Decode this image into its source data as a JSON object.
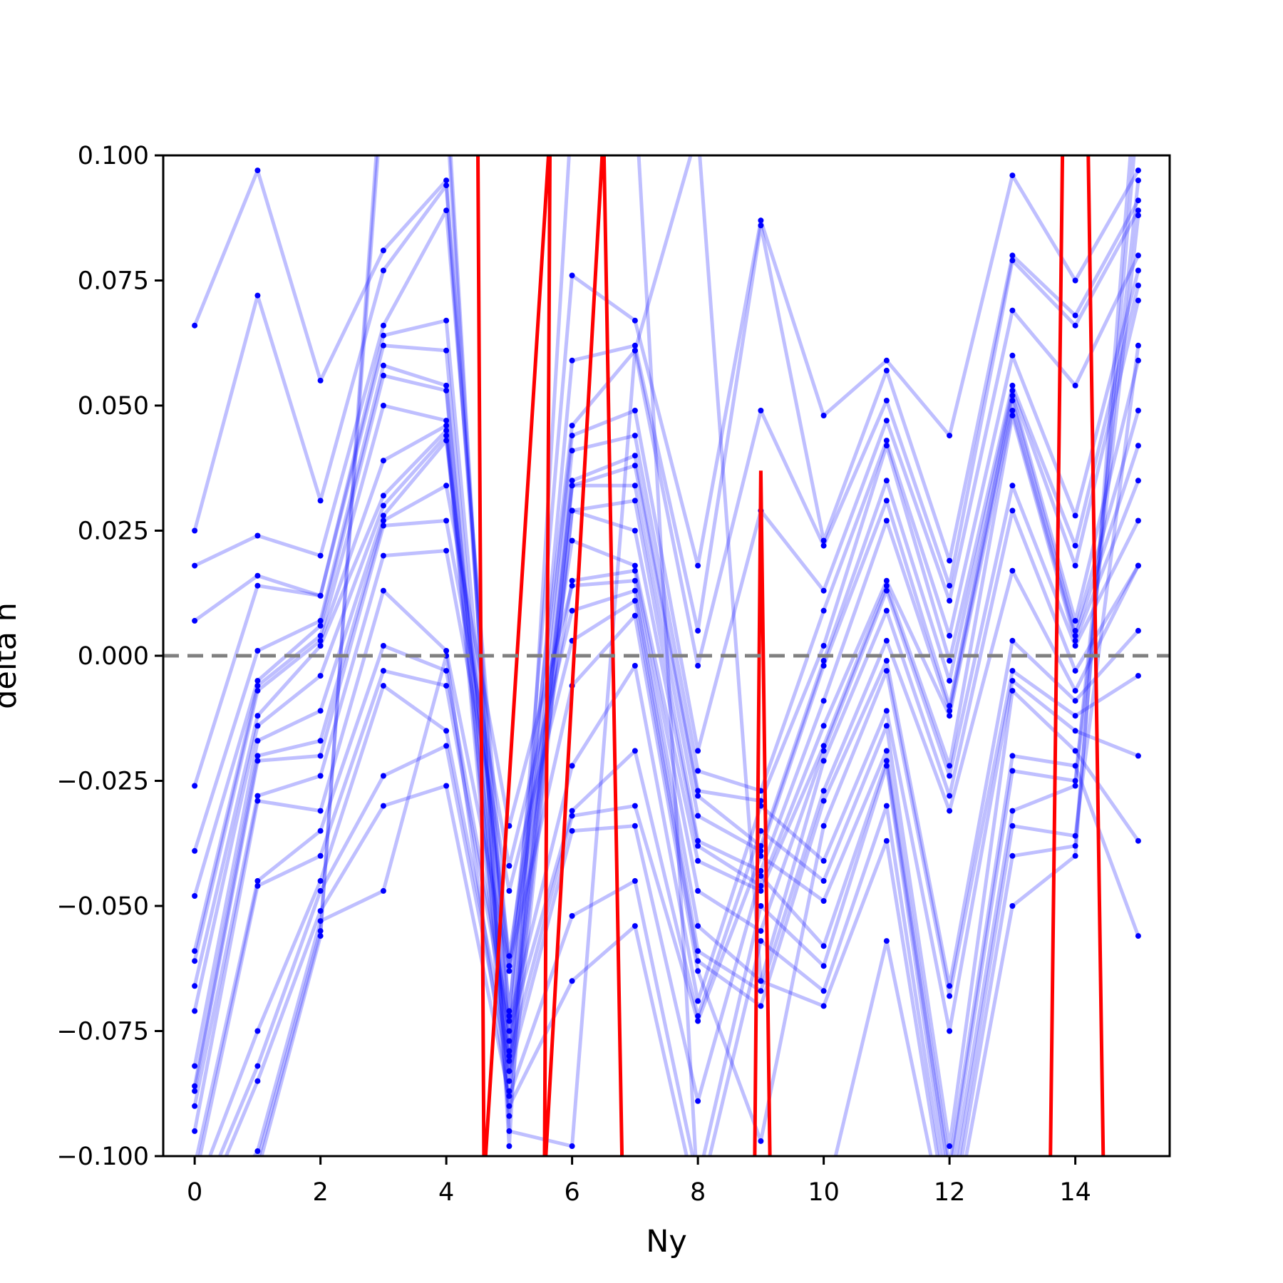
{
  "chart_data": {
    "type": "line",
    "xlabel": "Ny",
    "ylabel": "delta n",
    "xlim": [
      -0.5,
      15.5
    ],
    "ylim": [
      -0.1,
      0.1
    ],
    "x_ticks": [
      0,
      2,
      4,
      6,
      8,
      10,
      12,
      14
    ],
    "x_tick_labels": [
      "0",
      "2",
      "4",
      "6",
      "8",
      "10",
      "12",
      "14"
    ],
    "y_ticks": [
      -0.1,
      -0.075,
      -0.05,
      -0.025,
      0.0,
      0.025,
      0.05,
      0.075,
      0.1
    ],
    "y_tick_labels": [
      "−0.100",
      "−0.075",
      "−0.050",
      "−0.025",
      "0.000",
      "0.025",
      "0.050",
      "0.075",
      "0.100"
    ],
    "reference_line": {
      "y": 0.0,
      "style": "dashed",
      "color": "#808080"
    },
    "x": [
      0,
      1,
      2,
      3,
      4,
      5,
      6,
      7,
      8,
      9,
      10,
      11,
      12,
      13,
      14,
      15
    ],
    "series_color": "#0000ff",
    "series_opacity": 0.25,
    "series": [
      {
        "values": [
          0.066,
          0.097,
          0.055,
          0.081,
          0.095,
          -0.072,
          0.076,
          0.067,
          0.018,
          0.087,
          0.048,
          0.059,
          0.044,
          0.096,
          0.075,
          0.097
        ]
      },
      {
        "values": [
          0.025,
          0.072,
          0.031,
          0.077,
          0.094,
          -0.077,
          0.059,
          0.062,
          0.005,
          0.086,
          0.023,
          0.057,
          0.019,
          0.08,
          0.068,
          0.091
        ]
      },
      {
        "values": [
          0.018,
          0.024,
          0.02,
          0.066,
          0.089,
          -0.063,
          0.046,
          0.061,
          -0.002,
          0.049,
          0.022,
          0.051,
          0.014,
          0.079,
          0.066,
          0.089
        ]
      },
      {
        "values": [
          0.007,
          0.016,
          0.012,
          0.064,
          0.067,
          -0.071,
          0.044,
          0.049,
          -0.019,
          0.029,
          0.013,
          0.047,
          0.011,
          0.069,
          0.054,
          0.08
        ]
      },
      {
        "values": [
          -0.026,
          0.014,
          0.012,
          0.062,
          0.061,
          -0.079,
          0.041,
          0.044,
          -0.023,
          -0.027,
          0.009,
          0.043,
          0.004,
          0.06,
          0.028,
          0.077
        ]
      },
      {
        "values": [
          -0.039,
          0.001,
          0.007,
          0.058,
          0.054,
          -0.081,
          0.035,
          0.04,
          -0.027,
          -0.029,
          0.002,
          0.042,
          -0.001,
          0.054,
          0.022,
          0.074
        ]
      },
      {
        "values": [
          -0.048,
          -0.005,
          0.006,
          0.056,
          0.053,
          -0.083,
          0.034,
          0.038,
          -0.028,
          -0.038,
          -0.001,
          0.035,
          -0.005,
          0.053,
          0.018,
          0.071
        ]
      },
      {
        "values": [
          -0.059,
          -0.006,
          0.004,
          0.05,
          0.047,
          -0.085,
          0.034,
          0.034,
          -0.032,
          -0.039,
          -0.002,
          0.031,
          -0.01,
          0.052,
          0.007,
          0.059
        ]
      },
      {
        "values": [
          -0.061,
          -0.007,
          0.003,
          0.039,
          0.046,
          -0.087,
          0.029,
          0.031,
          -0.037,
          -0.043,
          -0.009,
          0.027,
          -0.011,
          0.051,
          0.005,
          0.049
        ]
      },
      {
        "values": [
          -0.066,
          -0.012,
          0.002,
          0.032,
          0.045,
          -0.092,
          0.029,
          0.025,
          -0.038,
          -0.046,
          -0.014,
          0.015,
          -0.012,
          0.049,
          0.004,
          0.042
        ]
      },
      {
        "values": [
          -0.071,
          -0.014,
          -0.004,
          0.03,
          0.044,
          -0.06,
          0.023,
          0.018,
          -0.041,
          -0.047,
          -0.018,
          0.014,
          -0.022,
          0.048,
          0.003,
          0.035
        ]
      },
      {
        "values": [
          -0.082,
          -0.017,
          -0.011,
          0.028,
          0.043,
          -0.062,
          0.015,
          0.017,
          -0.047,
          -0.055,
          -0.019,
          0.013,
          -0.024,
          0.034,
          0.002,
          0.027
        ]
      },
      {
        "values": [
          -0.086,
          -0.02,
          -0.017,
          0.027,
          0.034,
          -0.034,
          0.014,
          0.015,
          -0.054,
          -0.065,
          -0.021,
          0.009,
          -0.028,
          0.029,
          -0.003,
          0.018
        ]
      },
      {
        "values": [
          -0.087,
          -0.021,
          -0.02,
          0.026,
          0.027,
          -0.042,
          0.009,
          0.013,
          -0.059,
          -0.067,
          -0.027,
          0.003,
          -0.031,
          0.017,
          -0.007,
          0.018
        ]
      },
      {
        "values": [
          -0.09,
          -0.028,
          -0.024,
          0.02,
          0.021,
          -0.047,
          0.003,
          0.011,
          -0.061,
          -0.07,
          -0.029,
          -0.001,
          -0.066,
          0.003,
          -0.009,
          0.005
        ]
      },
      {
        "values": [
          -0.095,
          -0.029,
          -0.031,
          0.013,
          0.001,
          -0.062,
          -0.006,
          0.008,
          -0.063,
          -0.097,
          -0.034,
          -0.003,
          -0.068,
          -0.003,
          -0.012,
          -0.004
        ]
      },
      {
        "values": [
          -0.102,
          -0.045,
          -0.035,
          0.002,
          -0.003,
          -0.073,
          -0.022,
          -0.002,
          -0.069,
          -0.03,
          -0.041,
          -0.011,
          -0.075,
          -0.005,
          -0.015,
          -0.02
        ]
      },
      {
        "values": [
          -0.105,
          -0.046,
          -0.04,
          -0.003,
          -0.006,
          -0.075,
          -0.031,
          -0.019,
          -0.072,
          -0.035,
          -0.045,
          -0.014,
          -0.098,
          -0.007,
          -0.019,
          -0.037
        ]
      },
      {
        "values": [
          -0.108,
          -0.075,
          -0.045,
          -0.006,
          -0.015,
          -0.08,
          -0.032,
          -0.03,
          -0.073,
          -0.04,
          -0.049,
          -0.019,
          -0.102,
          -0.02,
          -0.022,
          -0.056
        ]
      },
      {
        "values": [
          -0.112,
          -0.082,
          -0.047,
          -0.024,
          -0.018,
          -0.083,
          -0.035,
          -0.034,
          -0.089,
          -0.044,
          -0.058,
          -0.021,
          -0.104,
          -0.023,
          -0.025,
          0.095
        ]
      },
      {
        "values": [
          -0.115,
          -0.085,
          -0.051,
          -0.03,
          -0.026,
          -0.088,
          -0.052,
          -0.045,
          -0.105,
          -0.05,
          -0.062,
          -0.022,
          -0.108,
          -0.031,
          -0.026,
          0.088
        ]
      },
      {
        "values": [
          -0.118,
          -0.099,
          -0.053,
          -0.047,
          0.0,
          -0.09,
          -0.065,
          -0.054,
          -0.11,
          -0.057,
          -0.067,
          -0.03,
          -0.112,
          -0.034,
          -0.036,
          0.062
        ]
      },
      {
        "values": [
          -0.12,
          -0.101,
          -0.055,
          0.115,
          0.11,
          -0.095,
          -0.098,
          0.061,
          0.105,
          -0.065,
          -0.07,
          -0.037,
          -0.115,
          -0.04,
          -0.038,
          0.11
        ]
      },
      {
        "values": [
          -0.122,
          -0.103,
          -0.056,
          0.12,
          0.115,
          -0.098,
          0.11,
          0.113,
          -0.108,
          -0.115,
          -0.11,
          -0.057,
          -0.118,
          -0.05,
          -0.04,
          0.12
        ]
      }
    ],
    "highlight_series": {
      "color": "#ff0000",
      "x": [
        4.5,
        4.6,
        5.65,
        5.56,
        6.5,
        6.8,
        8.9,
        9.0,
        9.15,
        13.6,
        13.8,
        14.2,
        14.45
      ],
      "values": [
        0.105,
        -0.105,
        0.105,
        -0.105,
        0.105,
        -0.105,
        -0.105,
        0.037,
        -0.105,
        -0.105,
        0.105,
        0.105,
        -0.105
      ]
    }
  }
}
